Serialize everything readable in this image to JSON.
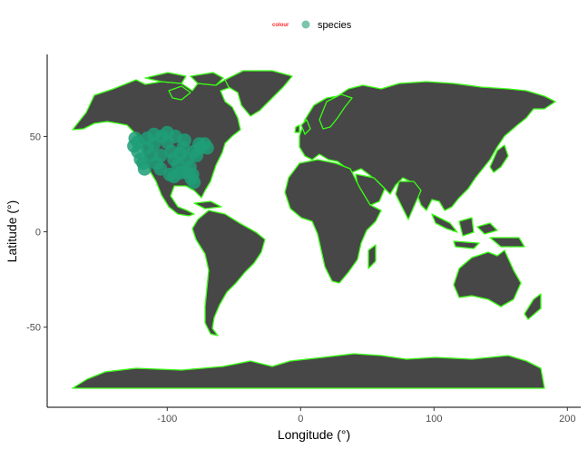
{
  "colors": {
    "land": "#474747",
    "border": "#39ff14",
    "species": "#1f9e77",
    "legend_title": "#ff2a2a",
    "axis": "#000000"
  },
  "legend": {
    "title": "colour",
    "entries": [
      {
        "label": "species",
        "color": "#1f9e77"
      }
    ],
    "placement": "top"
  },
  "chart_data": {
    "type": "scatter",
    "xlabel": "Longitude (°)",
    "ylabel": "Latitude (°)",
    "xlim": [
      -190,
      210
    ],
    "ylim": [
      -92,
      93
    ],
    "x_ticks": [
      -100,
      0,
      100,
      200
    ],
    "y_ticks": [
      -50,
      0,
      50
    ],
    "x_tick_labels": [
      "-100",
      "0",
      "100",
      "200"
    ],
    "y_tick_labels": [
      "-50",
      "0",
      "50"
    ],
    "grid": false,
    "series": [
      {
        "name": "species",
        "color": "#1f9e77",
        "points": [
          [
            -125,
            45
          ],
          [
            -124,
            49
          ],
          [
            -122,
            42
          ],
          [
            -120,
            38
          ],
          [
            -118,
            36
          ],
          [
            -122,
            47
          ],
          [
            -117,
            33
          ],
          [
            -115,
            44
          ],
          [
            -112,
            40
          ],
          [
            -110,
            46
          ],
          [
            -108,
            36
          ],
          [
            -105,
            40
          ],
          [
            -104,
            50
          ],
          [
            -100,
            47
          ],
          [
            -97,
            42
          ],
          [
            -95,
            38
          ],
          [
            -92,
            35
          ],
          [
            -90,
            41
          ],
          [
            -88,
            44
          ],
          [
            -85,
            38
          ],
          [
            -83,
            34
          ],
          [
            -80,
            42
          ],
          [
            -78,
            40
          ],
          [
            -75,
            44
          ],
          [
            -72,
            46
          ],
          [
            -70,
            44
          ],
          [
            -98,
            30
          ],
          [
            -95,
            29
          ],
          [
            -90,
            31
          ],
          [
            -85,
            31
          ],
          [
            -82,
            28
          ],
          [
            -80,
            26
          ],
          [
            -81,
            30
          ],
          [
            -100,
            52
          ],
          [
            -110,
            51
          ],
          [
            -115,
            49
          ],
          [
            -94,
            50
          ],
          [
            -87,
            48
          ],
          [
            -76,
            46
          ],
          [
            -105,
            33
          ]
        ]
      }
    ]
  }
}
